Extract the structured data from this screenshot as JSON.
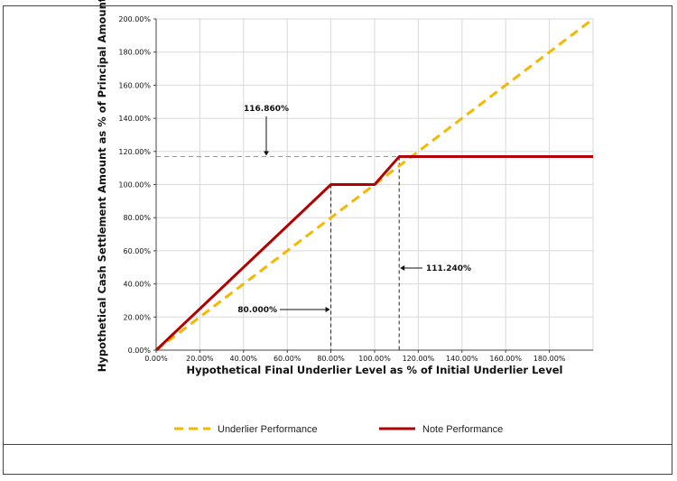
{
  "chart_data": {
    "type": "line",
    "xlabel": "Hypothetical Final Underlier Level as % of Initial Underlier Level",
    "ylabel": "Hypothetical Cash Settlement Amount as % of Principal Amount",
    "xlim": [
      0,
      200
    ],
    "ylim": [
      0,
      200
    ],
    "grid": true,
    "legend_position": "bottom",
    "x_tick_labels": [
      "0.00%",
      "20.00%",
      "40.00%",
      "60.00%",
      "80.00%",
      "100.00%",
      "120.00%",
      "140.00%",
      "160.00%",
      "180.00%"
    ],
    "y_tick_labels": [
      "0.00%",
      "20.00%",
      "40.00%",
      "60.00%",
      "80.00%",
      "100.00%",
      "120.00%",
      "140.00%",
      "160.00%",
      "180.00%",
      "200.00%"
    ],
    "series": [
      {
        "name": "Underlier Performance",
        "color": "#f5b800",
        "style": "dashed",
        "x": [
          0,
          200
        ],
        "y": [
          0,
          200
        ]
      },
      {
        "name": "Note Performance",
        "color": "#b30000",
        "style": "solid",
        "x": [
          0,
          80,
          100,
          111.24,
          200
        ],
        "y": [
          0,
          100,
          100,
          116.86,
          116.86
        ]
      }
    ],
    "annotations": [
      {
        "label": "116.860%",
        "value": 116.86
      },
      {
        "label": "111.240%",
        "value": 111.24
      },
      {
        "label": "80.000%",
        "value": 80
      }
    ]
  }
}
